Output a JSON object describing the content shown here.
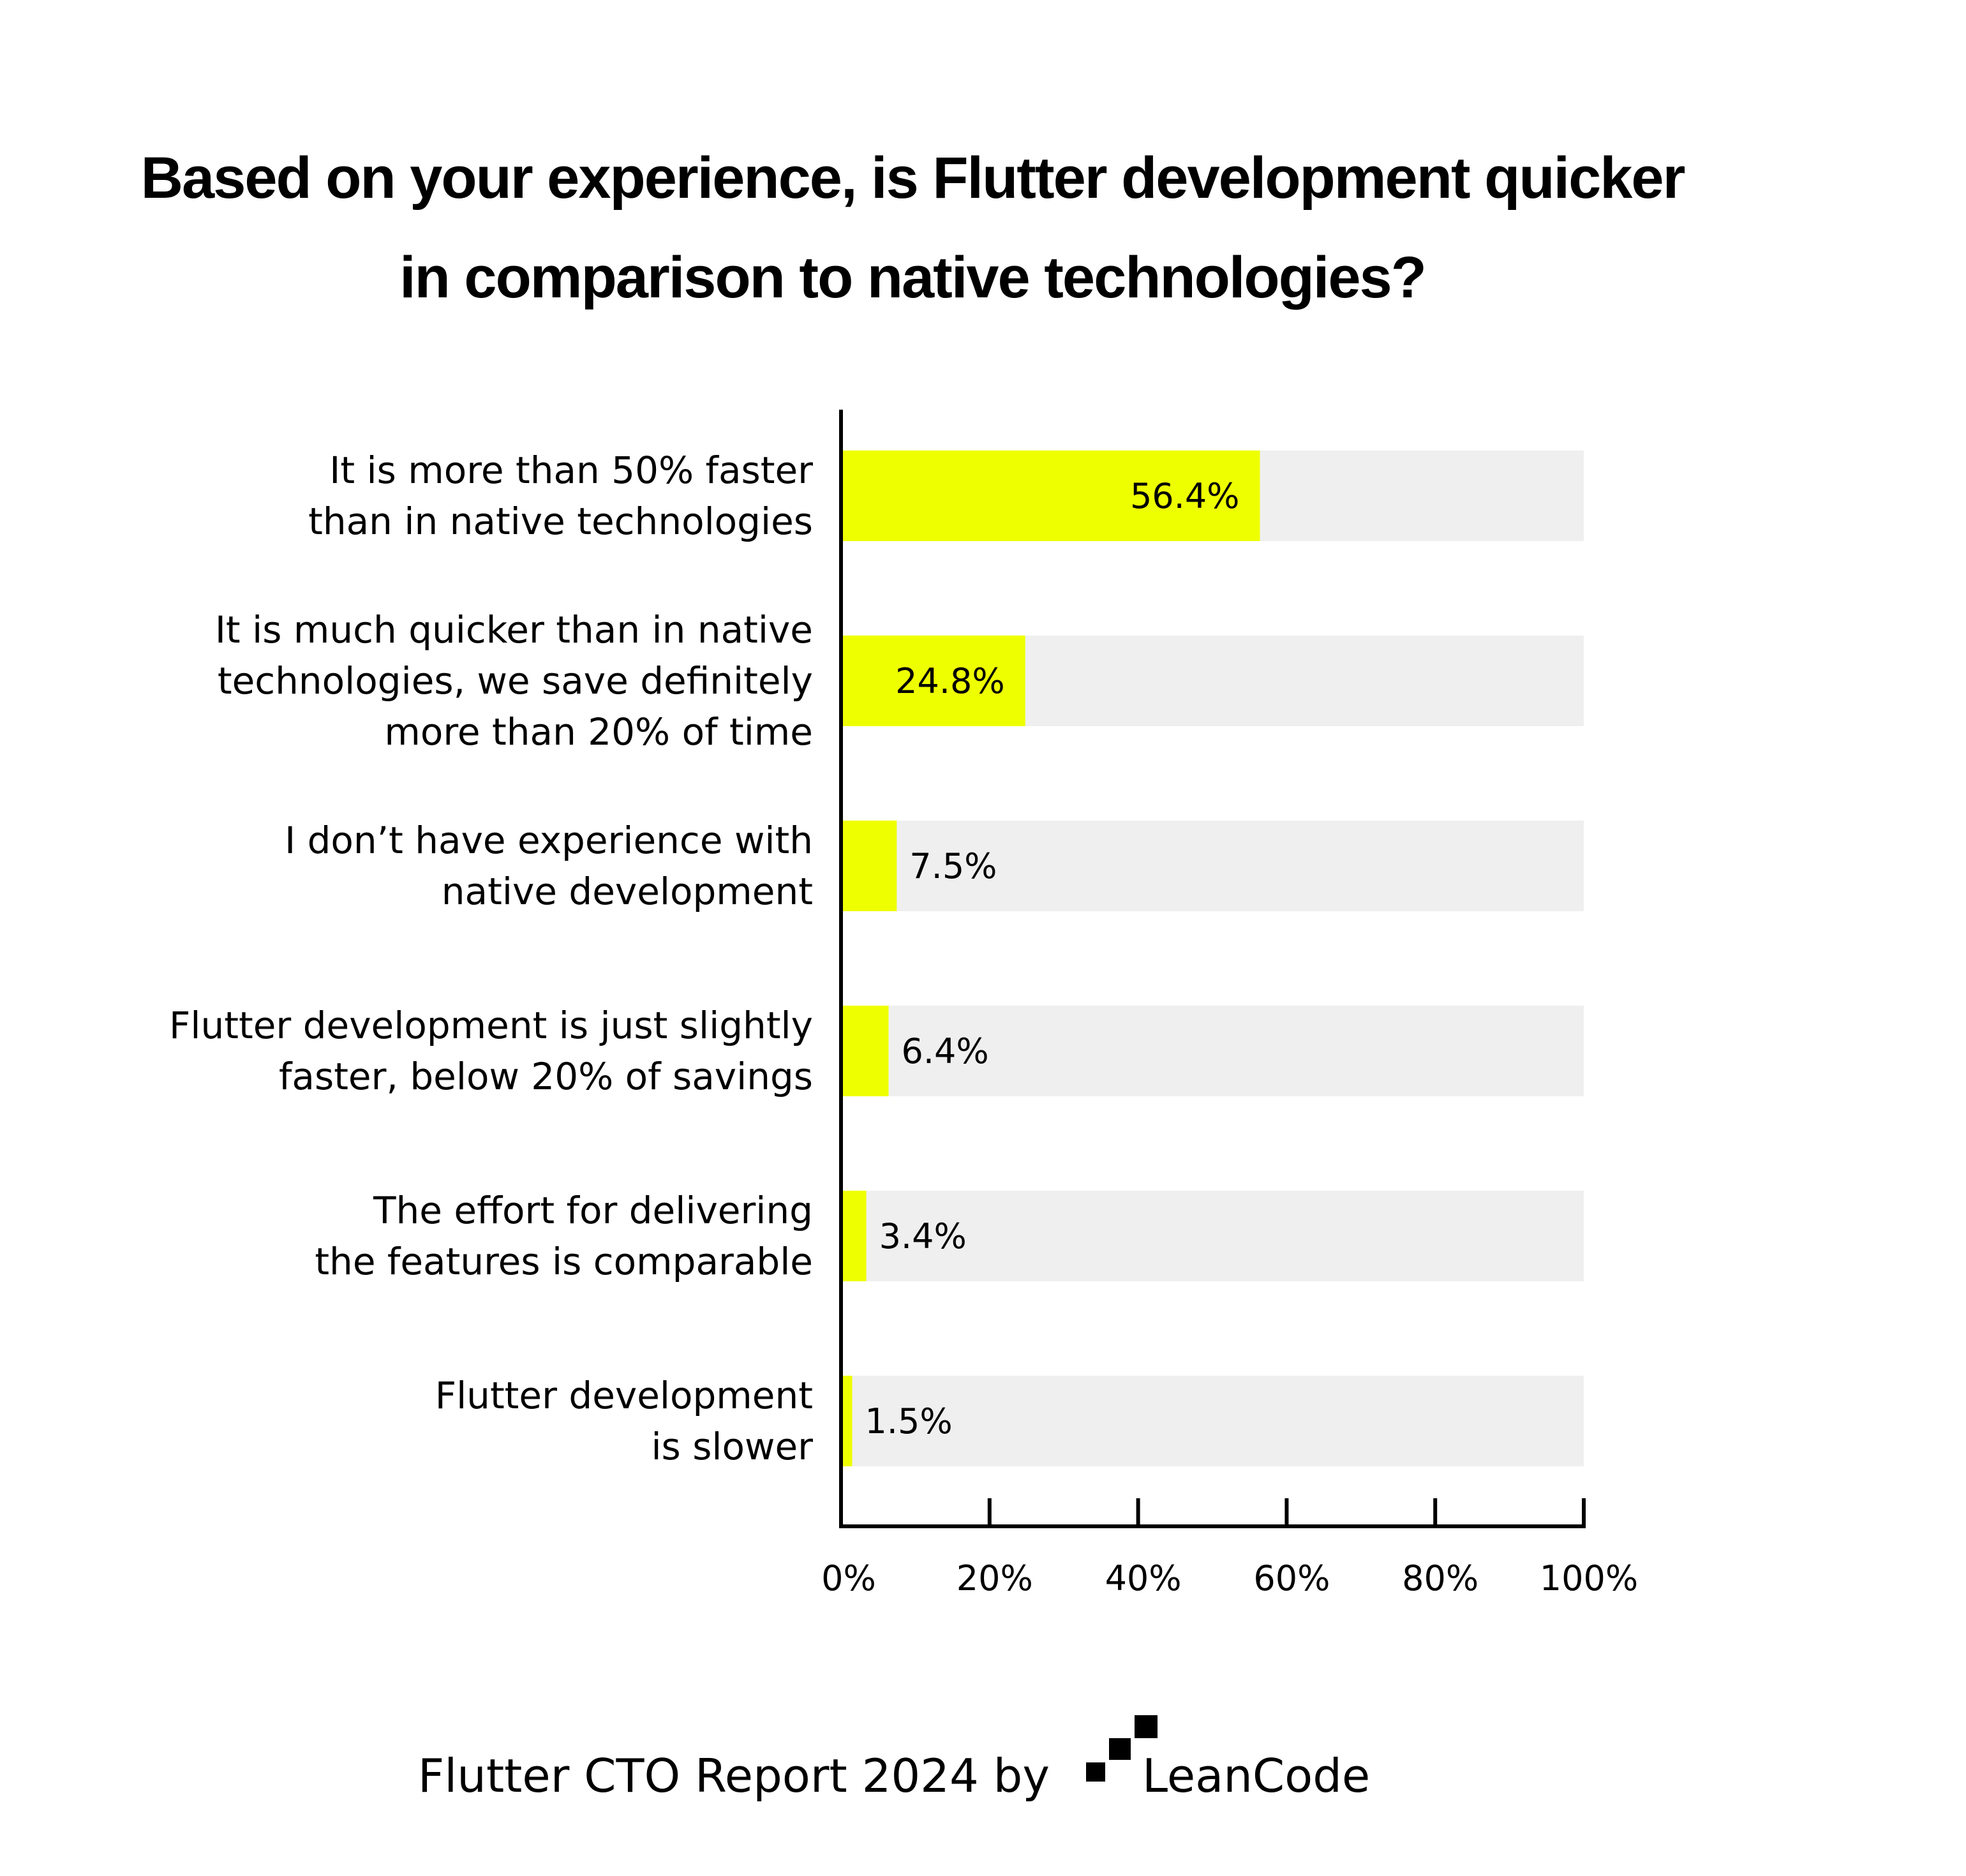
{
  "chart_data": {
    "type": "bar",
    "orientation": "horizontal",
    "title_lines": [
      "Based on your experience, is Flutter development quicker",
      "in comparison to native technologies?"
    ],
    "categories": [
      [
        "It is more than 50% faster",
        "than in native technologies"
      ],
      [
        "It is much quicker than in native",
        "technologies, we save definitely",
        "more than 20% of time"
      ],
      [
        "I don’t have experience with",
        "native development"
      ],
      [
        "Flutter development is just slightly",
        "faster, below 20% of savings"
      ],
      [
        "The effort for delivering",
        "the features is comparable"
      ],
      [
        "Flutter development",
        "is slower"
      ]
    ],
    "values": [
      56.4,
      24.8,
      7.5,
      6.4,
      3.4,
      1.5
    ],
    "value_labels": [
      "56.4%",
      "24.8%",
      "7.5%",
      "6.4%",
      "3.4%",
      "1.5%"
    ],
    "xlim": [
      0,
      100
    ],
    "xticks": [
      0,
      20,
      40,
      60,
      80,
      100
    ],
    "xtick_labels": [
      "0%",
      "20%",
      "40%",
      "60%",
      "80%",
      "100%"
    ],
    "grid": false,
    "legend": "none"
  },
  "colors": {
    "bar": "#eeff00",
    "track": "#efefef",
    "axis": "#000000",
    "text": "#000000"
  },
  "footer": {
    "text": "Flutter CTO Report 2024 by",
    "brand": "LeanCode",
    "logo_icon": "leancode-logo-icon"
  }
}
